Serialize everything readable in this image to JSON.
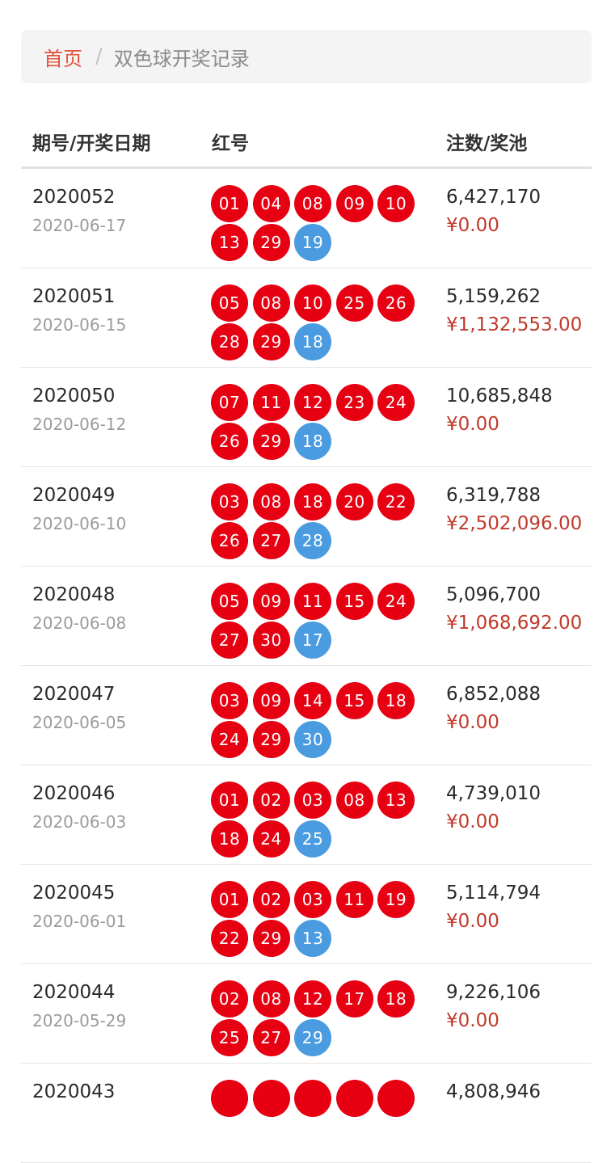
{
  "breadcrumb": {
    "home": "首页",
    "separator": "/",
    "current": "双色球开奖记录"
  },
  "table": {
    "headers": {
      "issue": "期号/开奖日期",
      "balls": "红号",
      "sales": "注数/奖池"
    },
    "rows": [
      {
        "issue": "2020052",
        "date": "2020-06-17",
        "red": [
          "01",
          "04",
          "08",
          "09",
          "10",
          "13",
          "29"
        ],
        "blue": "19",
        "sales": "6,427,170",
        "pool": "¥0.00"
      },
      {
        "issue": "2020051",
        "date": "2020-06-15",
        "red": [
          "05",
          "08",
          "10",
          "25",
          "26",
          "28",
          "29"
        ],
        "blue": "18",
        "sales": "5,159,262",
        "pool": "¥1,132,553.00"
      },
      {
        "issue": "2020050",
        "date": "2020-06-12",
        "red": [
          "07",
          "11",
          "12",
          "23",
          "24",
          "26",
          "29"
        ],
        "blue": "18",
        "sales": "10,685,848",
        "pool": "¥0.00"
      },
      {
        "issue": "2020049",
        "date": "2020-06-10",
        "red": [
          "03",
          "08",
          "18",
          "20",
          "22",
          "26",
          "27"
        ],
        "blue": "28",
        "sales": "6,319,788",
        "pool": "¥2,502,096.00"
      },
      {
        "issue": "2020048",
        "date": "2020-06-08",
        "red": [
          "05",
          "09",
          "11",
          "15",
          "24",
          "27",
          "30"
        ],
        "blue": "17",
        "sales": "5,096,700",
        "pool": "¥1,068,692.00"
      },
      {
        "issue": "2020047",
        "date": "2020-06-05",
        "red": [
          "03",
          "09",
          "14",
          "15",
          "18",
          "24",
          "29"
        ],
        "blue": "30",
        "sales": "6,852,088",
        "pool": "¥0.00"
      },
      {
        "issue": "2020046",
        "date": "2020-06-03",
        "red": [
          "01",
          "02",
          "03",
          "08",
          "13",
          "18",
          "24"
        ],
        "blue": "25",
        "sales": "4,739,010",
        "pool": "¥0.00"
      },
      {
        "issue": "2020045",
        "date": "2020-06-01",
        "red": [
          "01",
          "02",
          "03",
          "11",
          "19",
          "22",
          "29"
        ],
        "blue": "13",
        "sales": "5,114,794",
        "pool": "¥0.00"
      },
      {
        "issue": "2020044",
        "date": "2020-05-29",
        "red": [
          "02",
          "08",
          "12",
          "17",
          "18",
          "25",
          "27"
        ],
        "blue": "29",
        "sales": "9,226,106",
        "pool": "¥0.00"
      },
      {
        "issue": "2020043",
        "date": "",
        "red": [
          "",
          "",
          "",
          "",
          ""
        ],
        "blue": null,
        "sales": "4,808,946",
        "pool": ""
      }
    ]
  },
  "colors": {
    "red_ball": "#e60012",
    "blue_ball": "#4a9be0",
    "breadcrumb_home": "#e4513b",
    "pool_text": "#c0392b"
  }
}
